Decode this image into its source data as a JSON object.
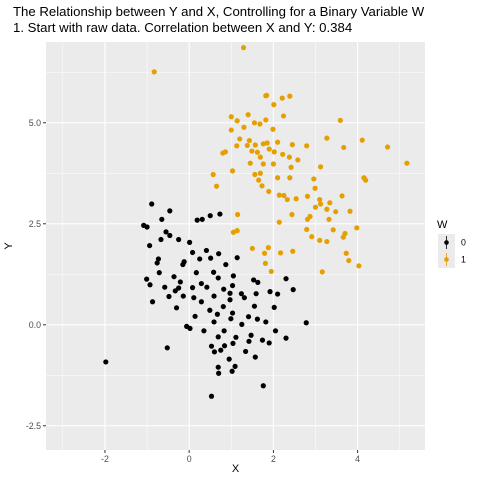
{
  "chart_data": {
    "type": "scatter",
    "title_lines": [
      "The Relationship between Y and X, Controlling for a Binary Variable W",
      "1. Start with raw data. Correlation between X and Y: 0.384"
    ],
    "xlabel": "X",
    "ylabel": "Y",
    "xlim": [
      -3.4,
      5.6
    ],
    "ylim": [
      -3.1,
      7.0
    ],
    "x_ticks": [
      -2,
      0,
      2,
      4
    ],
    "x_tick_labels": [
      "-2",
      "0",
      "2",
      "4"
    ],
    "y_ticks": [
      -2.5,
      0,
      2.5,
      5
    ],
    "y_tick_labels": [
      "-2.5",
      "0.0",
      "2.5",
      "5.0"
    ],
    "grid": true,
    "panel_color": "#EBEBEB",
    "legend": {
      "title": "W",
      "position": "right",
      "entries": [
        "0",
        "1"
      ]
    },
    "series": [
      {
        "name": "0",
        "color": "#000000",
        "points": [
          [
            -0.89,
            2.99
          ],
          [
            -1.08,
            2.46
          ],
          [
            -1.0,
            2.42
          ],
          [
            -0.46,
            2.82
          ],
          [
            -0.65,
            2.61
          ],
          [
            0.31,
            2.61
          ],
          [
            0.5,
            2.7
          ],
          [
            0.73,
            2.74
          ],
          [
            0.19,
            2.59
          ],
          [
            -0.55,
            2.3
          ],
          [
            -0.46,
            2.21
          ],
          [
            -0.67,
            2.11
          ],
          [
            -0.25,
            2.11
          ],
          [
            0.01,
            2.04
          ],
          [
            -0.94,
            1.96
          ],
          [
            0.08,
            1.79
          ],
          [
            0.41,
            1.84
          ],
          [
            0.51,
            1.65
          ],
          [
            -0.73,
            1.63
          ],
          [
            -0.12,
            1.56
          ],
          [
            -0.15,
            1.49
          ],
          [
            0.25,
            1.63
          ],
          [
            0.7,
            1.76
          ],
          [
            0.87,
            1.49
          ],
          [
            1.14,
            1.66
          ],
          [
            -0.76,
            1.53
          ],
          [
            -0.71,
            1.29
          ],
          [
            -0.36,
            1.19
          ],
          [
            0.17,
            1.29
          ],
          [
            0.69,
            1.16
          ],
          [
            1.05,
            1.21
          ],
          [
            1.53,
            1.11
          ],
          [
            -1.01,
            1.13
          ],
          [
            -0.21,
            1.06
          ],
          [
            0.29,
            1.02
          ],
          [
            0.58,
            1.3
          ],
          [
            1.03,
            0.97
          ],
          [
            1.63,
            1.05
          ],
          [
            2.3,
            1.14
          ],
          [
            -0.93,
            0.99
          ],
          [
            -0.25,
            0.91
          ],
          [
            0.08,
            0.92
          ],
          [
            0.42,
            0.93
          ],
          [
            0.82,
            0.88
          ],
          [
            1.24,
            0.77
          ],
          [
            1.31,
            0.67
          ],
          [
            1.59,
            0.77
          ],
          [
            1.92,
            0.82
          ],
          [
            2.1,
            0.76
          ],
          [
            2.47,
            0.87
          ],
          [
            -0.58,
            0.93
          ],
          [
            -0.33,
            0.84
          ],
          [
            0.11,
            0.67
          ],
          [
            0.59,
            0.71
          ],
          [
            0.97,
            0.78
          ],
          [
            0.97,
            0.62
          ],
          [
            -0.48,
            0.7
          ],
          [
            -0.14,
            0.71
          ],
          [
            0.29,
            0.57
          ],
          [
            -0.87,
            0.57
          ],
          [
            -0.3,
            0.42
          ],
          [
            0.49,
            0.36
          ],
          [
            0.81,
            0.45
          ],
          [
            1.55,
            0.46
          ],
          [
            2.02,
            0.43
          ],
          [
            0.67,
            0.26
          ],
          [
            1.03,
            0.29
          ],
          [
            0.14,
            0.21
          ],
          [
            1.41,
            0.2
          ],
          [
            1.62,
            0.14
          ],
          [
            0.59,
            0.07
          ],
          [
            0.99,
            0.15
          ],
          [
            1.82,
            0.07
          ],
          [
            1.25,
            0.01
          ],
          [
            2.78,
            0.05
          ],
          [
            -0.06,
            -0.04
          ],
          [
            0.02,
            -0.09
          ],
          [
            0.35,
            -0.15
          ],
          [
            0.83,
            -0.15
          ],
          [
            2.05,
            -0.15
          ],
          [
            1.47,
            -0.26
          ],
          [
            1.11,
            -0.31
          ],
          [
            0.69,
            -0.3
          ],
          [
            1.74,
            -0.38
          ],
          [
            0.53,
            -0.53
          ],
          [
            0.84,
            -0.52
          ],
          [
            1.04,
            -0.46
          ],
          [
            1.42,
            -0.41
          ],
          [
            1.9,
            -0.45
          ],
          [
            2.3,
            -0.33
          ],
          [
            -0.52,
            -0.57
          ],
          [
            0.75,
            -0.63
          ],
          [
            0.6,
            -0.67
          ],
          [
            1.34,
            -0.66
          ],
          [
            0.95,
            -0.85
          ],
          [
            1.57,
            -0.8
          ],
          [
            0.69,
            -1.05
          ],
          [
            1.09,
            -1.03
          ],
          [
            1.02,
            -1.15
          ],
          [
            0.7,
            -1.2
          ],
          [
            1.76,
            -1.51
          ],
          [
            0.53,
            -1.77
          ],
          [
            -1.98,
            -0.92
          ]
        ]
      },
      {
        "name": "1",
        "color": "#E69F00",
        "points": [
          [
            -0.83,
            6.26
          ],
          [
            1.29,
            6.86
          ],
          [
            1.0,
            5.15
          ],
          [
            1.4,
            5.2
          ],
          [
            1.84,
            5.68
          ],
          [
            1.82,
            5.67
          ],
          [
            2.21,
            5.61
          ],
          [
            2.39,
            5.66
          ],
          [
            2.01,
            5.45
          ],
          [
            1.14,
            5.05
          ],
          [
            1.55,
            5.0
          ],
          [
            1.68,
            4.97
          ],
          [
            1.82,
            5.07
          ],
          [
            2.24,
            5.17
          ],
          [
            3.59,
            5.06
          ],
          [
            1.0,
            4.82
          ],
          [
            1.3,
            4.89
          ],
          [
            1.99,
            4.84
          ],
          [
            0.8,
            4.25
          ],
          [
            0.86,
            4.28
          ],
          [
            1.13,
            4.43
          ],
          [
            1.2,
            4.6
          ],
          [
            1.38,
            4.44
          ],
          [
            1.43,
            4.56
          ],
          [
            1.57,
            4.45
          ],
          [
            1.76,
            4.48
          ],
          [
            1.85,
            4.5
          ],
          [
            1.9,
            4.35
          ],
          [
            2.1,
            4.52
          ],
          [
            2.45,
            4.46
          ],
          [
            2.79,
            4.43
          ],
          [
            3.27,
            4.62
          ],
          [
            3.67,
            4.39
          ],
          [
            4.11,
            4.57
          ],
          [
            4.71,
            4.4
          ],
          [
            5.17,
            4.0
          ],
          [
            1.62,
            4.27
          ],
          [
            1.49,
            4.3
          ],
          [
            1.69,
            4.15
          ],
          [
            2.02,
            4.28
          ],
          [
            2.22,
            4.22
          ],
          [
            2.58,
            4.08
          ],
          [
            2.38,
            4.15
          ],
          [
            1.45,
            4.0
          ],
          [
            1.76,
            3.98
          ],
          [
            2.0,
            3.98
          ],
          [
            2.42,
            3.9
          ],
          [
            3.12,
            3.91
          ],
          [
            1.03,
            3.81
          ],
          [
            1.56,
            3.72
          ],
          [
            1.69,
            3.75
          ],
          [
            0.57,
            3.72
          ],
          [
            1.65,
            3.58
          ],
          [
            2.1,
            3.64
          ],
          [
            2.39,
            3.64
          ],
          [
            2.96,
            3.61
          ],
          [
            4.15,
            3.64
          ],
          [
            4.19,
            3.58
          ],
          [
            1.73,
            3.44
          ],
          [
            0.65,
            3.43
          ],
          [
            1.89,
            3.3
          ],
          [
            2.14,
            3.21
          ],
          [
            2.25,
            3.2
          ],
          [
            2.33,
            3.1
          ],
          [
            2.54,
            3.12
          ],
          [
            2.81,
            3.18
          ],
          [
            3.1,
            3.1
          ],
          [
            3.34,
            3.02
          ],
          [
            2.99,
            3.38
          ],
          [
            3.63,
            3.19
          ],
          [
            3.12,
            2.99
          ],
          [
            3.27,
            2.86
          ],
          [
            3.0,
            2.91
          ],
          [
            2.87,
            2.68
          ],
          [
            3.48,
            2.8
          ],
          [
            3.82,
            2.81
          ],
          [
            2.81,
            2.61
          ],
          [
            3.32,
            2.61
          ],
          [
            2.44,
            2.73
          ],
          [
            1.15,
            2.73
          ],
          [
            2.14,
            2.54
          ],
          [
            2.79,
            2.36
          ],
          [
            3.42,
            2.35
          ],
          [
            3.98,
            2.4
          ],
          [
            2.91,
            2.18
          ],
          [
            3.7,
            2.26
          ],
          [
            1.05,
            2.29
          ],
          [
            1.14,
            2.33
          ],
          [
            3.1,
            2.09
          ],
          [
            3.27,
            2.06
          ],
          [
            3.66,
            2.17
          ],
          [
            1.5,
            1.89
          ],
          [
            1.79,
            1.77
          ],
          [
            1.88,
            1.91
          ],
          [
            2.46,
            1.82
          ],
          [
            2.17,
            1.78
          ],
          [
            3.73,
            1.77
          ],
          [
            1.81,
            1.52
          ],
          [
            3.79,
            1.59
          ],
          [
            4.03,
            1.46
          ],
          [
            3.16,
            1.31
          ],
          [
            1.95,
            1.32
          ]
        ]
      }
    ]
  }
}
